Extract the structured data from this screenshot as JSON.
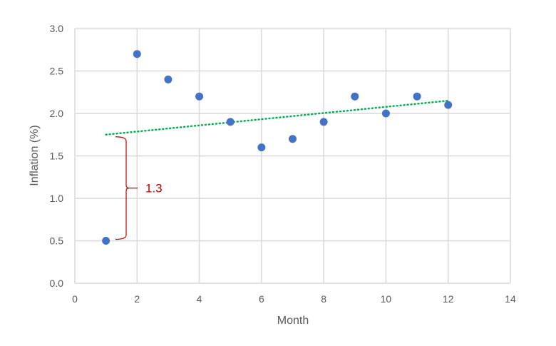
{
  "chart_data": {
    "type": "scatter",
    "title": "",
    "xlabel": "Month",
    "ylabel": "Inflation (%)",
    "xlim": [
      0,
      14
    ],
    "ylim": [
      0,
      3.0
    ],
    "xticks": [
      "0",
      "2",
      "4",
      "6",
      "8",
      "10",
      "12",
      "14"
    ],
    "yticks": [
      "0.0",
      "0.5",
      "1.0",
      "1.5",
      "2.0",
      "2.5",
      "3.0"
    ],
    "grid": true,
    "legend": "none",
    "series": [
      {
        "x": [
          1,
          2,
          3,
          4,
          5,
          6,
          7,
          8,
          9,
          10,
          11,
          12
        ],
        "y": [
          0.5,
          2.7,
          2.4,
          2.2,
          1.9,
          1.6,
          1.7,
          1.9,
          2.2,
          2.0,
          2.2,
          2.1
        ],
        "color": "#4472c4"
      }
    ],
    "trendline": {
      "type": "linear",
      "style": "dotted",
      "color": "#00b050",
      "x": [
        1,
        12
      ],
      "y": [
        1.75,
        2.15
      ]
    },
    "annotation": {
      "text": "1.3",
      "color": "#c00000",
      "x": 1,
      "y_from": 0.5,
      "y_to": 1.75
    }
  }
}
